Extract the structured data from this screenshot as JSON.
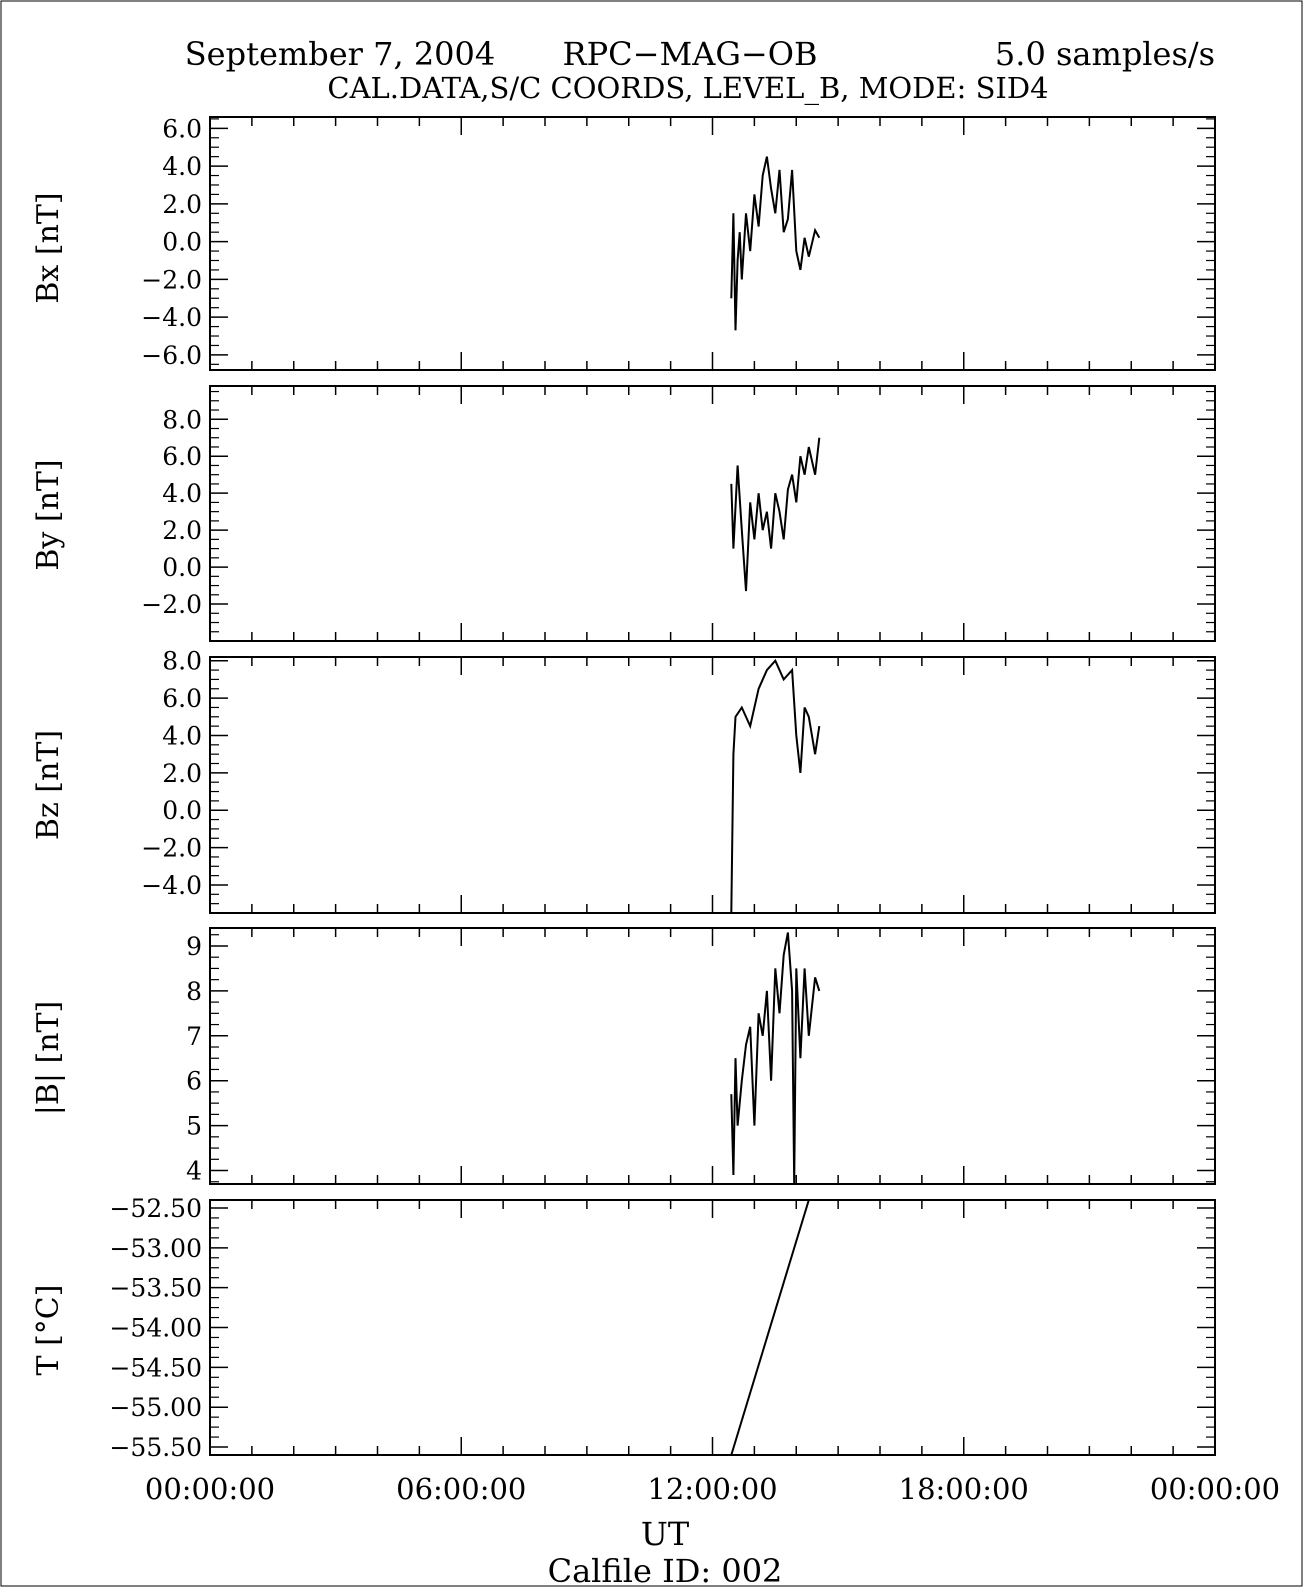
{
  "header": {
    "date": "September 7, 2004",
    "instrument": "RPC−MAG−OB",
    "rate": "5.0 samples/s",
    "subtitle": "CAL.DATA,S/C COORDS, LEVEL_B, MODE: SID4"
  },
  "footer": {
    "xlabel": "UT",
    "calfile": "Calfile ID: 002"
  },
  "colors": {
    "line": "#000000",
    "background": "#ffffff"
  },
  "chart_data": [
    {
      "type": "line",
      "ylabel": "Bx [nT]",
      "ylim": [
        -6.8,
        6.6
      ],
      "yticks": [
        -6.0,
        -4.0,
        -2.0,
        0.0,
        2.0,
        4.0,
        6.0
      ],
      "yticklabels": [
        "−6.0",
        "−4.0",
        "−2.0",
        "0.0",
        "2.0",
        "4.0",
        "6.0"
      ],
      "xlim": [
        0,
        24
      ],
      "x": [
        12.45,
        12.5,
        12.55,
        12.6,
        12.65,
        12.7,
        12.8,
        12.9,
        13.0,
        13.1,
        13.2,
        13.3,
        13.4,
        13.5,
        13.6,
        13.7,
        13.8,
        13.9,
        14.0,
        14.1,
        14.2,
        14.3,
        14.45,
        14.55
      ],
      "y": [
        -3.0,
        1.5,
        -4.7,
        -1.0,
        0.5,
        -2.0,
        1.5,
        -0.5,
        2.5,
        0.8,
        3.5,
        4.5,
        2.8,
        1.5,
        3.8,
        0.5,
        1.2,
        3.8,
        -0.5,
        -1.5,
        0.2,
        -0.8,
        0.6,
        0.2
      ]
    },
    {
      "type": "line",
      "ylabel": "By [nT]",
      "ylim": [
        -4.0,
        9.8
      ],
      "yticks": [
        -2.0,
        0.0,
        2.0,
        4.0,
        6.0,
        8.0
      ],
      "yticklabels": [
        "−2.0",
        "0.0",
        "2.0",
        "4.0",
        "6.0",
        "8.0"
      ],
      "xlim": [
        0,
        24
      ],
      "x": [
        12.45,
        12.5,
        12.6,
        12.7,
        12.8,
        12.9,
        13.0,
        13.1,
        13.2,
        13.3,
        13.4,
        13.5,
        13.6,
        13.7,
        13.8,
        13.9,
        14.0,
        14.1,
        14.2,
        14.3,
        14.45,
        14.55
      ],
      "y": [
        4.5,
        1.0,
        5.5,
        2.0,
        -1.3,
        3.5,
        1.5,
        4.0,
        2.0,
        3.0,
        1.0,
        4.0,
        3.0,
        1.5,
        4.2,
        5.0,
        3.5,
        6.0,
        5.0,
        6.5,
        5.0,
        7.0
      ]
    },
    {
      "type": "line",
      "ylabel": "Bz [nT]",
      "ylim": [
        -5.5,
        8.2
      ],
      "yticks": [
        -4.0,
        -2.0,
        0.0,
        2.0,
        4.0,
        6.0,
        8.0
      ],
      "yticklabels": [
        "−4.0",
        "−2.0",
        "0.0",
        "2.0",
        "4.0",
        "6.0",
        "8.0"
      ],
      "xlim": [
        0,
        24
      ],
      "x": [
        12.45,
        12.5,
        12.55,
        12.7,
        12.9,
        13.1,
        13.3,
        13.5,
        13.7,
        13.9,
        14.0,
        14.1,
        14.2,
        14.3,
        14.45,
        14.55
      ],
      "y": [
        -5.5,
        3.0,
        5.0,
        5.5,
        4.5,
        6.5,
        7.5,
        8.0,
        7.0,
        7.5,
        4.0,
        2.0,
        5.5,
        5.0,
        3.0,
        4.5
      ]
    },
    {
      "type": "line",
      "ylabel": "|B| [nT]",
      "ylim": [
        3.7,
        9.4
      ],
      "yticks": [
        4,
        5,
        6,
        7,
        8,
        9
      ],
      "yticklabels": [
        "4",
        "5",
        "6",
        "7",
        "8",
        "9"
      ],
      "xlim": [
        0,
        24
      ],
      "x": [
        12.45,
        12.5,
        12.55,
        12.6,
        12.7,
        12.8,
        12.9,
        13.0,
        13.1,
        13.2,
        13.3,
        13.4,
        13.5,
        13.6,
        13.7,
        13.8,
        13.9,
        13.95,
        14.0,
        14.1,
        14.2,
        14.3,
        14.45,
        14.55
      ],
      "y": [
        5.7,
        3.9,
        6.5,
        5.0,
        6.0,
        6.8,
        7.2,
        5.0,
        7.5,
        7.0,
        8.0,
        6.0,
        8.5,
        7.5,
        8.8,
        9.3,
        8.0,
        3.7,
        8.5,
        6.5,
        8.5,
        7.0,
        8.3,
        8.0
      ]
    },
    {
      "type": "line",
      "ylabel": "T [°C]",
      "ylim": [
        -55.6,
        -52.4
      ],
      "yticks": [
        -55.5,
        -55.0,
        -54.5,
        -54.0,
        -53.5,
        -53.0,
        -52.5
      ],
      "yticklabels": [
        "−55.50",
        "−55.00",
        "−54.50",
        "−54.00",
        "−53.50",
        "−53.00",
        "−52.50"
      ],
      "xlim": [
        0,
        24
      ],
      "x": [
        12.45,
        14.3
      ],
      "y": [
        -55.6,
        -52.4
      ]
    }
  ],
  "xaxis": {
    "ticks": [
      0,
      6,
      12,
      18,
      24
    ],
    "labels": [
      "00:00:00",
      "06:00:00",
      "12:00:00",
      "18:00:00",
      "00:00:00"
    ]
  }
}
